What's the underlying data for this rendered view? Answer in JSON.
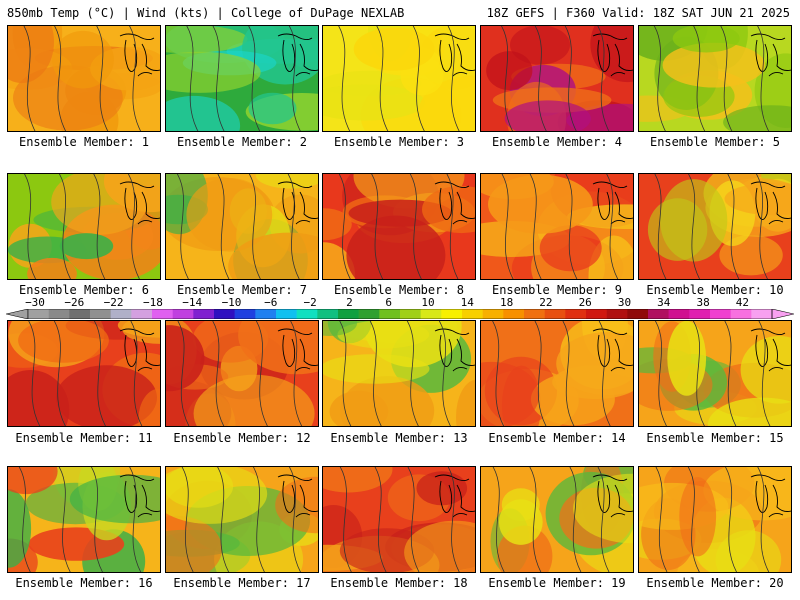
{
  "header": {
    "left": "850mb Temp (°C) | Wind (kts) | College of DuPage NEXLAB",
    "right": "18Z GEFS | F360 Valid: 18Z SAT JUN 21 2025"
  },
  "panels": [
    {
      "caption": "Ensemble Member: 1",
      "palette": [
        "#f7b01a",
        "#f19a0c",
        "#ec7a14",
        "#f5a414"
      ]
    },
    {
      "caption": "Ensemble Member: 2",
      "palette": [
        "#2eaa3c",
        "#23c58c",
        "#1bd5c8",
        "#8fd230"
      ]
    },
    {
      "caption": "Ensemble Member: 3",
      "palette": [
        "#f4e418",
        "#fbd80c",
        "#e8e214",
        "#fae010"
      ]
    },
    {
      "caption": "Ensemble Member: 4",
      "palette": [
        "#e0301e",
        "#c0101a",
        "#f07018",
        "#b01080"
      ]
    },
    {
      "caption": "Ensemble Member: 5",
      "palette": [
        "#b8d820",
        "#8cc810",
        "#f4c01a",
        "#6ab01c"
      ]
    },
    {
      "caption": "Ensemble Member: 6",
      "palette": [
        "#8cc810",
        "#f6a41a",
        "#3ab048",
        "#f48018"
      ]
    },
    {
      "caption": "Ensemble Member: 7",
      "palette": [
        "#f6b41a",
        "#f09c14",
        "#e8e014",
        "#3ab048"
      ]
    },
    {
      "caption": "Ensemble Member: 8",
      "palette": [
        "#e8381c",
        "#f06a14",
        "#f6a61a",
        "#c8201a"
      ]
    },
    {
      "caption": "Ensemble Member: 9",
      "palette": [
        "#f0581a",
        "#f69818",
        "#e8381c",
        "#f8c01a"
      ]
    },
    {
      "caption": "Ensemble Member: 10",
      "palette": [
        "#e8401c",
        "#f6a41a",
        "#f4d81a",
        "#c0c818"
      ]
    },
    {
      "caption": "Ensemble Member: 11",
      "palette": [
        "#e8401c",
        "#f06a14",
        "#f6a61a",
        "#c8201a"
      ]
    },
    {
      "caption": "Ensemble Member: 12",
      "palette": [
        "#e8401c",
        "#f07018",
        "#c8201a",
        "#f6a41a"
      ]
    },
    {
      "caption": "Ensemble Member: 13",
      "palette": [
        "#f6b41a",
        "#e8e014",
        "#5ab83c",
        "#f09c14"
      ]
    },
    {
      "caption": "Ensemble Member: 14",
      "palette": [
        "#f07018",
        "#f6a41a",
        "#e8401c",
        "#f8c01a"
      ]
    },
    {
      "caption": "Ensemble Member: 15",
      "palette": [
        "#f6a41a",
        "#e8e014",
        "#5ab83c",
        "#f07018"
      ]
    },
    {
      "caption": "Ensemble Member: 16",
      "palette": [
        "#f6b41a",
        "#3ab048",
        "#e8401c",
        "#c8d820"
      ]
    },
    {
      "caption": "Ensemble Member: 17",
      "palette": [
        "#f6a41a",
        "#e8e014",
        "#5ab83c",
        "#f07018"
      ]
    },
    {
      "caption": "Ensemble Member: 18",
      "palette": [
        "#e8401c",
        "#c8201a",
        "#f07018",
        "#f6a41a"
      ]
    },
    {
      "caption": "Ensemble Member: 19",
      "palette": [
        "#f6a41a",
        "#e8e014",
        "#5ab83c",
        "#f07018"
      ]
    },
    {
      "caption": "Ensemble Member: 20",
      "palette": [
        "#f6a41a",
        "#f07018",
        "#f8c01a",
        "#e8e014"
      ]
    }
  ],
  "colorbar": {
    "labels": [
      "−30",
      "−26",
      "−22",
      "−18",
      "−14",
      "−10",
      "−6",
      "−2",
      "2",
      "6",
      "10",
      "14",
      "18",
      "22",
      "26",
      "30",
      "34",
      "38",
      "42"
    ],
    "colors": [
      "#a0a0a0",
      "#8a8a8a",
      "#707070",
      "#909090",
      "#b0b0c8",
      "#d4a0e0",
      "#e060f0",
      "#c040e0",
      "#8020d0",
      "#3010c0",
      "#2040e0",
      "#2080f0",
      "#10c0f0",
      "#10e0c0",
      "#10c080",
      "#10a040",
      "#30a030",
      "#70c020",
      "#a0d018",
      "#d8e818",
      "#f8f000",
      "#f8d000",
      "#f8b000",
      "#f89000",
      "#f07010",
      "#e85010",
      "#e03010",
      "#d01810",
      "#b01010",
      "#900a0a",
      "#b01060",
      "#d01090",
      "#e020b0",
      "#f040d0",
      "#f870e0",
      "#f8a0f0"
    ]
  }
}
